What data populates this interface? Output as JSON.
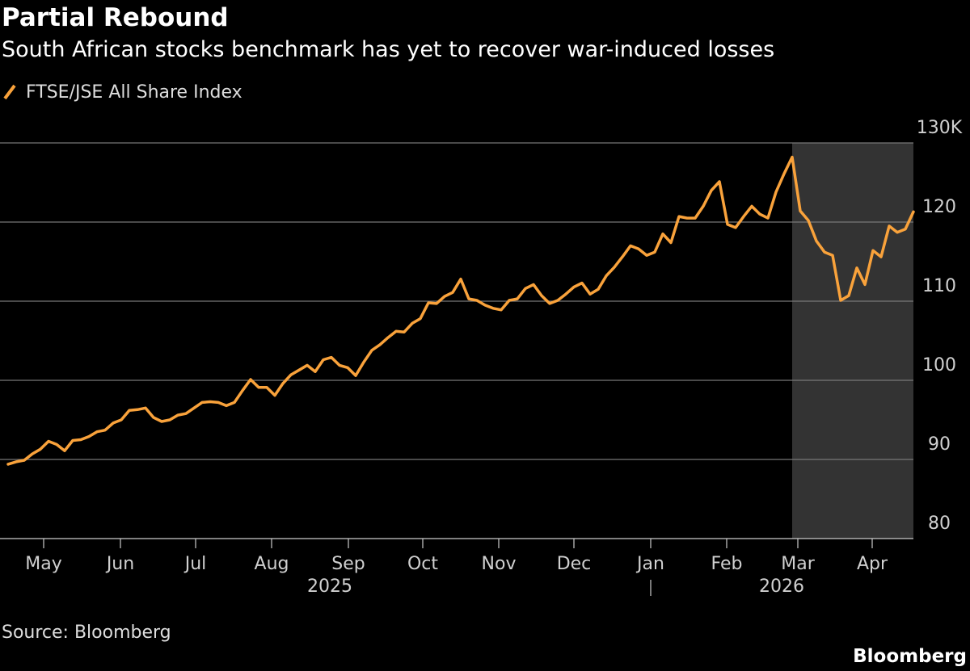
{
  "chart_data": {
    "type": "line",
    "title": "Partial Rebound",
    "subtitle": "South African stocks benchmark has yet to recover war-induced losses",
    "source": "Source: Bloomberg",
    "logo": "Bloomberg",
    "series": [
      {
        "name": "FTSE/JSE All Share Index",
        "color": "#f9a23b",
        "values": [
          89.4,
          89.7,
          89.9,
          90.7,
          91.3,
          92.3,
          91.9,
          91.1,
          92.4,
          92.5,
          92.9,
          93.5,
          93.7,
          94.6,
          95.0,
          96.2,
          96.3,
          96.5,
          95.3,
          94.8,
          95.0,
          95.6,
          95.8,
          96.5,
          97.2,
          97.3,
          97.2,
          96.8,
          97.2,
          98.7,
          100.1,
          99.1,
          99.1,
          98.1,
          99.6,
          100.7,
          101.3,
          101.9,
          101.1,
          102.6,
          102.9,
          101.9,
          101.6,
          100.6,
          102.3,
          103.8,
          104.5,
          105.4,
          106.2,
          106.1,
          107.2,
          107.8,
          109.8,
          109.7,
          110.6,
          111.1,
          112.8,
          110.3,
          110.1,
          109.5,
          109.1,
          108.9,
          110.1,
          110.3,
          111.6,
          112.1,
          110.7,
          109.7,
          110.1,
          110.9,
          111.8,
          112.3,
          110.9,
          111.5,
          113.2,
          114.3,
          115.6,
          117.0,
          116.6,
          115.8,
          116.2,
          118.5,
          117.4,
          120.7,
          120.5,
          120.5,
          122.0,
          124.0,
          125.1,
          119.7,
          119.3,
          120.7,
          122.0,
          121.0,
          120.5,
          123.8,
          126.1,
          128.2,
          121.4,
          120.2,
          117.6,
          116.2,
          115.8,
          110.1,
          110.7,
          114.2,
          112.1,
          116.4,
          115.6,
          119.5,
          118.7,
          119.1,
          121.3
        ]
      }
    ],
    "xlim": [
      -1,
      112
    ],
    "xticks": [
      {
        "value": 4.4,
        "label": "May"
      },
      {
        "value": 13.9,
        "label": "Jun"
      },
      {
        "value": 23.2,
        "label": "Jul"
      },
      {
        "value": 32.6,
        "label": "Aug"
      },
      {
        "value": 42.1,
        "label": "Sep"
      },
      {
        "value": 51.3,
        "label": "Oct"
      },
      {
        "value": 60.7,
        "label": "Nov"
      },
      {
        "value": 70,
        "label": "Dec"
      },
      {
        "value": 79.5,
        "label": "Jan"
      },
      {
        "value": 88.9,
        "label": "Feb"
      },
      {
        "value": 97.7,
        "label": "Mar"
      },
      {
        "value": 106.9,
        "label": "Apr"
      }
    ],
    "year_labels": [
      {
        "value": 39.8,
        "label": "2025"
      },
      {
        "value": 95.7,
        "label": "2026"
      }
    ],
    "highlight": [
      97,
      112
    ],
    "ylim": [
      80,
      130
    ],
    "yticks": [
      80,
      90,
      100,
      110,
      120,
      {
        "value": 130,
        "label": "130K"
      }
    ],
    "grid": true
  }
}
